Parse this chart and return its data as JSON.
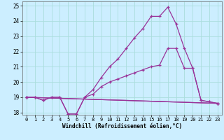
{
  "xlabel": "Windchill (Refroidissement éolien,°C)",
  "bg_color": "#cceeff",
  "grid_color": "#aadddd",
  "line_color": "#993399",
  "xmin": 0,
  "xmax": 23,
  "ymin": 18,
  "ymax": 25,
  "line1_x": [
    0,
    1,
    2,
    3,
    4,
    5,
    6,
    7,
    8,
    9,
    10,
    11,
    12,
    13,
    14,
    15,
    16,
    17,
    18,
    19,
    20,
    21,
    22,
    23
  ],
  "line1_y": [
    19.0,
    19.0,
    18.8,
    19.0,
    19.0,
    17.9,
    17.9,
    19.0,
    19.5,
    20.3,
    21.0,
    21.5,
    22.2,
    22.9,
    23.5,
    24.3,
    24.3,
    24.9,
    23.8,
    22.2,
    20.9,
    18.8,
    18.7,
    18.6
  ],
  "line2_x": [
    0,
    1,
    2,
    3,
    4,
    5,
    6,
    7,
    8,
    9,
    10,
    11,
    12,
    13,
    14,
    15,
    16,
    17,
    18,
    19,
    20,
    21,
    22,
    23
  ],
  "line2_y": [
    19.0,
    19.0,
    18.8,
    19.0,
    19.0,
    17.9,
    17.9,
    19.0,
    19.2,
    19.7,
    20.0,
    20.2,
    20.4,
    20.6,
    20.8,
    21.0,
    21.1,
    22.2,
    22.2,
    20.9,
    20.9,
    18.8,
    18.7,
    18.6
  ],
  "line3_x": [
    0,
    23
  ],
  "line3_y": [
    19.0,
    18.6
  ],
  "line4_x": [
    0,
    23
  ],
  "line4_y": [
    19.0,
    18.6
  ],
  "yticks": [
    18,
    19,
    20,
    21,
    22,
    23,
    24,
    25
  ],
  "xticks": [
    0,
    1,
    2,
    3,
    4,
    5,
    6,
    7,
    8,
    9,
    10,
    11,
    12,
    13,
    14,
    15,
    16,
    17,
    18,
    19,
    20,
    21,
    22,
    23
  ]
}
